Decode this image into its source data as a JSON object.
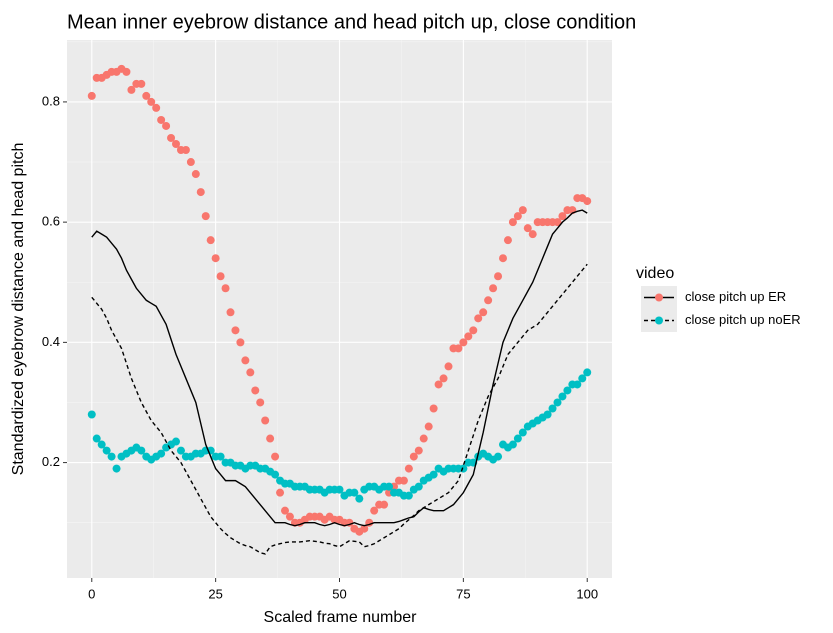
{
  "chart_data": {
    "type": "scatter",
    "title": "Mean inner eyebrow distance and head pitch up, close condition",
    "x_label": "Scaled frame number",
    "y_label": "Standardized eyebrow distance and head pitch",
    "legend_title": "video",
    "xlim": [
      -5,
      105
    ],
    "ylim": [
      0.008,
      0.903
    ],
    "xticks": [
      0,
      25,
      50,
      75,
      100
    ],
    "yticks": [
      0.2,
      0.4,
      0.6,
      0.8
    ],
    "grid": true,
    "x": [
      0,
      1,
      2,
      3,
      4,
      5,
      6,
      7,
      8,
      9,
      10,
      11,
      12,
      13,
      14,
      15,
      16,
      17,
      18,
      19,
      20,
      21,
      22,
      23,
      24,
      25,
      26,
      27,
      28,
      29,
      30,
      31,
      32,
      33,
      34,
      35,
      36,
      37,
      38,
      39,
      40,
      41,
      42,
      43,
      44,
      45,
      46,
      47,
      48,
      49,
      50,
      51,
      52,
      53,
      54,
      55,
      56,
      57,
      58,
      59,
      60,
      61,
      62,
      63,
      64,
      65,
      66,
      67,
      68,
      69,
      70,
      71,
      72,
      73,
      74,
      75,
      76,
      77,
      78,
      79,
      80,
      81,
      82,
      83,
      84,
      85,
      86,
      87,
      88,
      89,
      90,
      91,
      92,
      93,
      94,
      95,
      96,
      97,
      98,
      99,
      100
    ],
    "series": [
      {
        "name": "close pitch up ER",
        "color": "#f8766d",
        "line_color": "#000000",
        "linetype": "solid",
        "values": [
          0.81,
          0.84,
          0.84,
          0.845,
          0.85,
          0.85,
          0.855,
          0.85,
          0.82,
          0.83,
          0.83,
          0.81,
          0.8,
          0.79,
          0.77,
          0.76,
          0.74,
          0.73,
          0.72,
          0.72,
          0.7,
          0.68,
          0.65,
          0.61,
          0.57,
          0.54,
          0.51,
          0.49,
          0.45,
          0.42,
          0.4,
          0.37,
          0.35,
          0.32,
          0.3,
          0.27,
          0.24,
          0.21,
          0.15,
          0.12,
          0.11,
          0.1,
          0.1,
          0.105,
          0.11,
          0.11,
          0.11,
          0.105,
          0.11,
          0.105,
          0.105,
          0.1,
          0.1,
          0.09,
          0.085,
          0.09,
          0.1,
          0.12,
          0.13,
          0.13,
          0.15,
          0.16,
          0.17,
          0.17,
          0.19,
          0.21,
          0.22,
          0.24,
          0.26,
          0.29,
          0.33,
          0.34,
          0.36,
          0.39,
          0.39,
          0.4,
          0.41,
          0.42,
          0.44,
          0.45,
          0.47,
          0.49,
          0.51,
          0.54,
          0.57,
          0.6,
          0.61,
          0.62,
          0.59,
          0.58,
          0.6,
          0.6,
          0.6,
          0.6,
          0.6,
          0.61,
          0.62,
          0.62,
          0.64,
          0.64,
          0.635
        ],
        "line_values": [
          0.575,
          0.585,
          0.58,
          0.575,
          0.565,
          0.555,
          0.54,
          0.52,
          0.505,
          0.49,
          0.48,
          0.47,
          0.465,
          0.46,
          0.445,
          0.43,
          0.405,
          0.38,
          0.36,
          0.34,
          0.32,
          0.3,
          0.265,
          0.23,
          0.21,
          0.19,
          0.18,
          0.17,
          0.17,
          0.17,
          0.165,
          0.16,
          0.15,
          0.14,
          0.13,
          0.12,
          0.11,
          0.1,
          0.1,
          0.1,
          0.097,
          0.095,
          0.097,
          0.1,
          0.1,
          0.1,
          0.097,
          0.095,
          0.097,
          0.1,
          0.097,
          0.095,
          0.097,
          0.1,
          0.097,
          0.095,
          0.097,
          0.1,
          0.1,
          0.1,
          0.1,
          0.1,
          0.102,
          0.105,
          0.108,
          0.11,
          0.118,
          0.125,
          0.122,
          0.12,
          0.12,
          0.12,
          0.125,
          0.13,
          0.14,
          0.15,
          0.165,
          0.18,
          0.215,
          0.25,
          0.29,
          0.33,
          0.365,
          0.4,
          0.42,
          0.44,
          0.455,
          0.47,
          0.485,
          0.5,
          0.52,
          0.54,
          0.56,
          0.58,
          0.59,
          0.6,
          0.607,
          0.615,
          0.618,
          0.62,
          0.615
        ]
      },
      {
        "name": "close pitch up noER",
        "color": "#00bfc4",
        "line_color": "#000000",
        "linetype": "dashed",
        "values": [
          0.28,
          0.24,
          0.23,
          0.22,
          0.21,
          0.19,
          0.21,
          0.215,
          0.22,
          0.225,
          0.22,
          0.21,
          0.205,
          0.21,
          0.215,
          0.225,
          0.23,
          0.235,
          0.22,
          0.21,
          0.21,
          0.215,
          0.215,
          0.22,
          0.22,
          0.21,
          0.21,
          0.2,
          0.2,
          0.195,
          0.195,
          0.19,
          0.195,
          0.195,
          0.19,
          0.19,
          0.185,
          0.18,
          0.17,
          0.165,
          0.165,
          0.16,
          0.16,
          0.16,
          0.155,
          0.155,
          0.155,
          0.15,
          0.155,
          0.155,
          0.155,
          0.145,
          0.15,
          0.15,
          0.14,
          0.155,
          0.16,
          0.16,
          0.155,
          0.16,
          0.16,
          0.15,
          0.15,
          0.145,
          0.145,
          0.155,
          0.16,
          0.17,
          0.175,
          0.18,
          0.19,
          0.185,
          0.19,
          0.19,
          0.19,
          0.19,
          0.2,
          0.2,
          0.21,
          0.215,
          0.21,
          0.205,
          0.21,
          0.23,
          0.225,
          0.23,
          0.24,
          0.25,
          0.26,
          0.265,
          0.27,
          0.275,
          0.28,
          0.29,
          0.3,
          0.31,
          0.32,
          0.33,
          0.33,
          0.34,
          0.35
        ],
        "line_values": [
          0.475,
          0.465,
          0.455,
          0.44,
          0.42,
          0.405,
          0.39,
          0.365,
          0.34,
          0.32,
          0.3,
          0.285,
          0.27,
          0.26,
          0.25,
          0.235,
          0.22,
          0.21,
          0.2,
          0.185,
          0.17,
          0.155,
          0.14,
          0.125,
          0.11,
          0.1,
          0.09,
          0.082,
          0.075,
          0.07,
          0.065,
          0.062,
          0.06,
          0.055,
          0.05,
          0.048,
          0.06,
          0.063,
          0.065,
          0.067,
          0.068,
          0.068,
          0.068,
          0.069,
          0.07,
          0.069,
          0.068,
          0.066,
          0.065,
          0.062,
          0.06,
          0.065,
          0.07,
          0.069,
          0.068,
          0.06,
          0.062,
          0.065,
          0.07,
          0.075,
          0.08,
          0.085,
          0.09,
          0.098,
          0.105,
          0.112,
          0.12,
          0.125,
          0.13,
          0.135,
          0.14,
          0.145,
          0.15,
          0.16,
          0.17,
          0.195,
          0.22,
          0.245,
          0.27,
          0.29,
          0.31,
          0.325,
          0.34,
          0.36,
          0.38,
          0.39,
          0.4,
          0.41,
          0.42,
          0.425,
          0.43,
          0.44,
          0.45,
          0.46,
          0.47,
          0.48,
          0.49,
          0.5,
          0.51,
          0.52,
          0.53
        ]
      }
    ]
  }
}
